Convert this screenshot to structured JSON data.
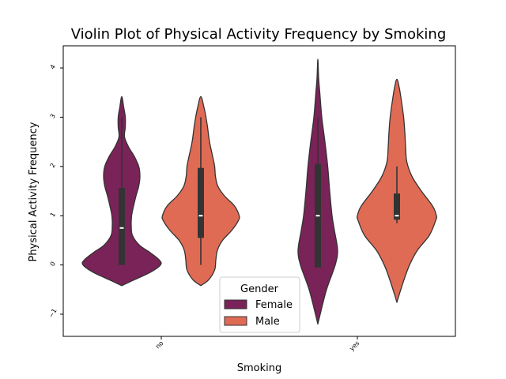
{
  "chart_data": {
    "type": "violin",
    "title": "Violin Plot of Physical Activity Frequency by Smoking",
    "xlabel": "Smoking",
    "ylabel": "Physical Activity Frequency",
    "categories": [
      "no",
      "yes"
    ],
    "ylim": [
      -1.45,
      4.45
    ],
    "yticks": [
      -1,
      0,
      1,
      2,
      3,
      4
    ],
    "grid": false,
    "legend": {
      "title": "Gender",
      "placement": "bottom-center",
      "entries": [
        "Female",
        "Male"
      ]
    },
    "series": [
      {
        "name": "Female",
        "color": "#7a2358",
        "violins": [
          {
            "category": "no",
            "profile": [
              [
                -0.42,
                0.0
              ],
              [
                -0.3,
                0.32
              ],
              [
                -0.15,
                0.72
              ],
              [
                0.0,
                0.98
              ],
              [
                0.1,
                0.95
              ],
              [
                0.25,
                0.72
              ],
              [
                0.4,
                0.45
              ],
              [
                0.6,
                0.27
              ],
              [
                0.8,
                0.24
              ],
              [
                1.0,
                0.25
              ],
              [
                1.2,
                0.3
              ],
              [
                1.4,
                0.36
              ],
              [
                1.6,
                0.43
              ],
              [
                1.8,
                0.46
              ],
              [
                2.0,
                0.43
              ],
              [
                2.2,
                0.32
              ],
              [
                2.4,
                0.17
              ],
              [
                2.6,
                0.07
              ],
              [
                2.8,
                0.09
              ],
              [
                3.0,
                0.09
              ],
              [
                3.2,
                0.05
              ],
              [
                3.42,
                0.0
              ]
            ],
            "whisker": [
              0.0,
              3.0
            ],
            "box": [
              0.0,
              1.56
            ],
            "median": 0.75
          },
          {
            "category": "yes",
            "profile": [
              [
                -1.2,
                0.0
              ],
              [
                -1.0,
                0.06
              ],
              [
                -0.5,
                0.22
              ],
              [
                0.0,
                0.44
              ],
              [
                0.3,
                0.5
              ],
              [
                0.7,
                0.42
              ],
              [
                1.0,
                0.36
              ],
              [
                1.5,
                0.3
              ],
              [
                2.0,
                0.25
              ],
              [
                2.5,
                0.18
              ],
              [
                3.0,
                0.1
              ],
              [
                3.5,
                0.05
              ],
              [
                3.8,
                0.02
              ],
              [
                4.18,
                0.0
              ]
            ],
            "whisker": [
              -0.05,
              3.0
            ],
            "box": [
              -0.05,
              2.05
            ],
            "median": 1.0
          }
        ]
      },
      {
        "name": "Male",
        "color": "#e06b55",
        "violins": [
          {
            "category": "no",
            "profile": [
              [
                -0.42,
                0.0
              ],
              [
                -0.3,
                0.2
              ],
              [
                -0.1,
                0.35
              ],
              [
                0.1,
                0.38
              ],
              [
                0.3,
                0.42
              ],
              [
                0.5,
                0.55
              ],
              [
                0.7,
                0.78
              ],
              [
                0.9,
                0.95
              ],
              [
                1.0,
                0.97
              ],
              [
                1.2,
                0.85
              ],
              [
                1.4,
                0.6
              ],
              [
                1.6,
                0.43
              ],
              [
                1.8,
                0.37
              ],
              [
                2.0,
                0.35
              ],
              [
                2.2,
                0.3
              ],
              [
                2.5,
                0.22
              ],
              [
                2.8,
                0.17
              ],
              [
                3.0,
                0.13
              ],
              [
                3.2,
                0.08
              ],
              [
                3.42,
                0.0
              ]
            ],
            "whisker": [
              0.0,
              3.0
            ],
            "box": [
              0.55,
              1.97
            ],
            "median": 1.0
          },
          {
            "category": "yes",
            "profile": [
              [
                -0.76,
                0.0
              ],
              [
                -0.6,
                0.06
              ],
              [
                -0.3,
                0.18
              ],
              [
                0.0,
                0.32
              ],
              [
                0.3,
                0.52
              ],
              [
                0.6,
                0.82
              ],
              [
                0.9,
                0.98
              ],
              [
                1.0,
                1.0
              ],
              [
                1.2,
                0.9
              ],
              [
                1.5,
                0.62
              ],
              [
                1.8,
                0.38
              ],
              [
                2.1,
                0.25
              ],
              [
                2.4,
                0.22
              ],
              [
                2.7,
                0.2
              ],
              [
                3.0,
                0.17
              ],
              [
                3.3,
                0.12
              ],
              [
                3.6,
                0.06
              ],
              [
                3.77,
                0.0
              ]
            ],
            "whisker": [
              0.85,
              2.0
            ],
            "box": [
              0.92,
              1.45
            ],
            "median": 1.0
          }
        ]
      }
    ]
  }
}
